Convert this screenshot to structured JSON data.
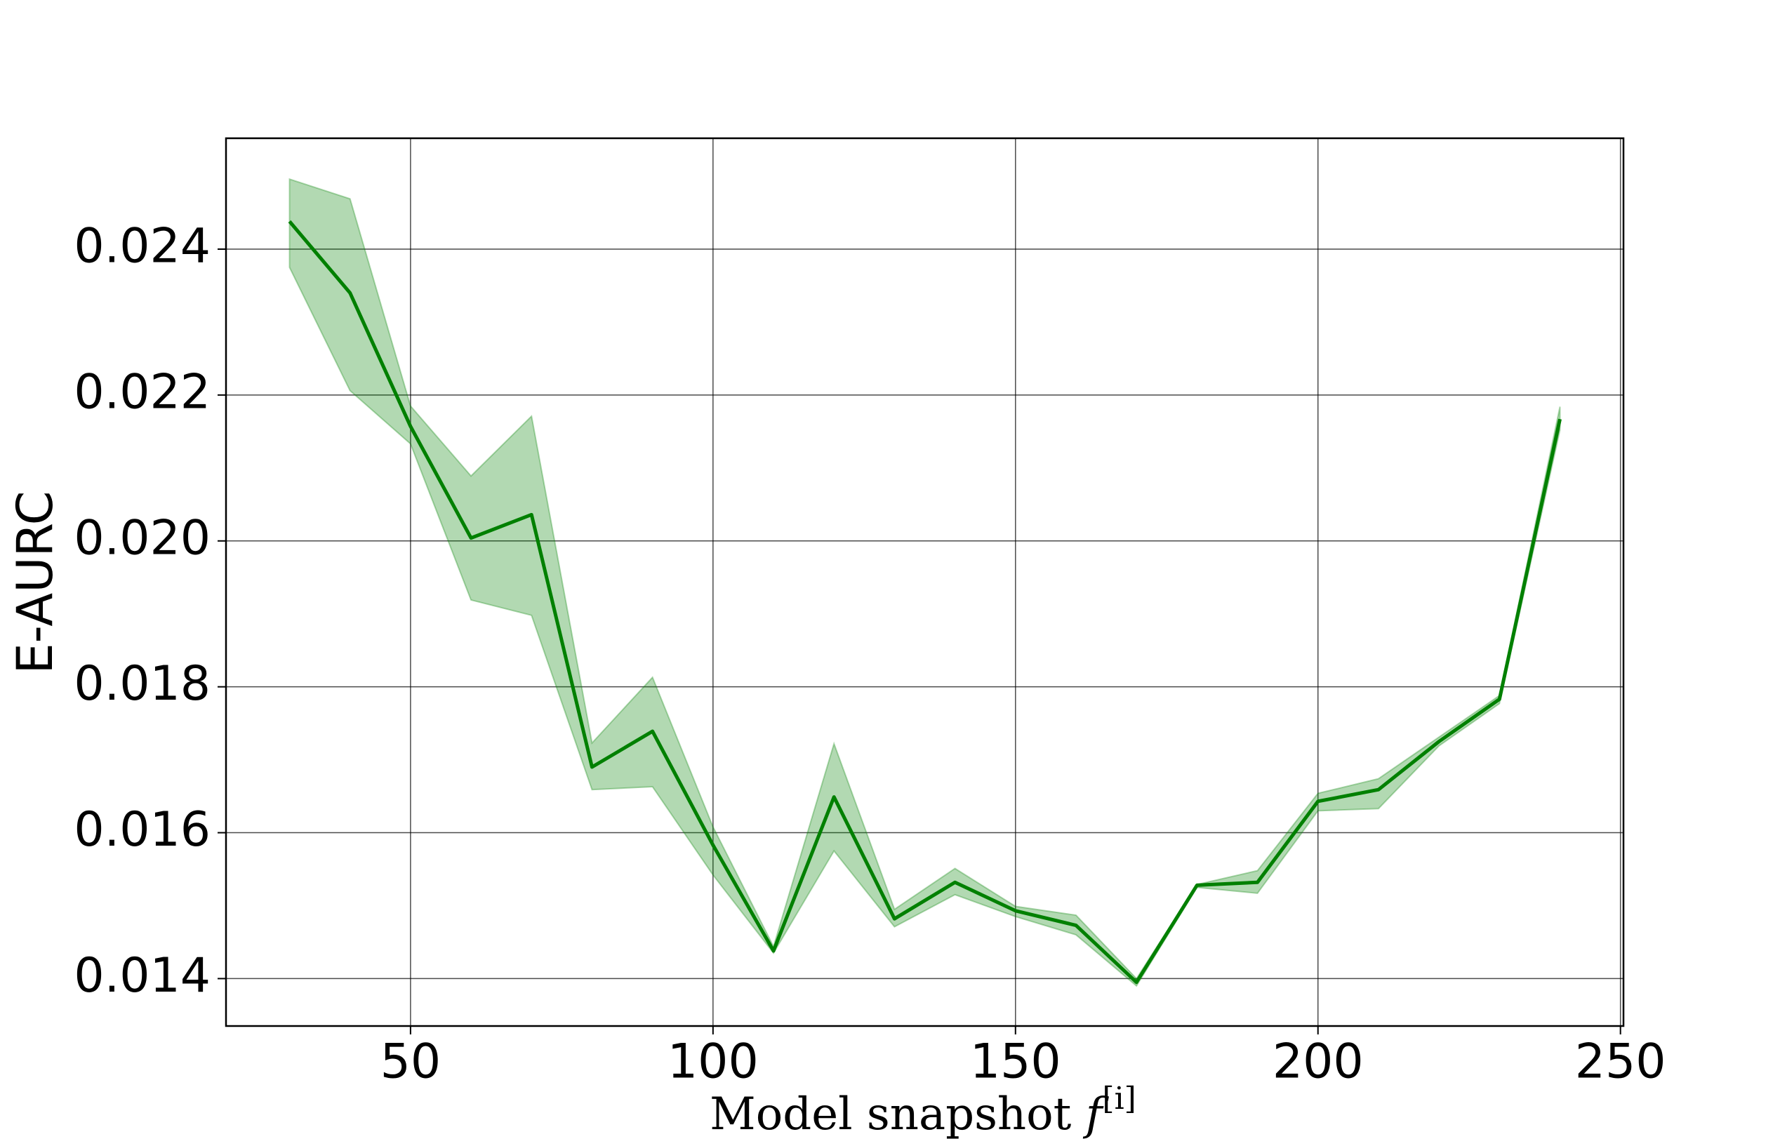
{
  "chart_data": {
    "type": "line",
    "xlabel": {
      "text": "Model snapshot",
      "symbol": "f",
      "superscript": "[i]"
    },
    "ylabel": "E-AURC",
    "x": [
      30,
      40,
      50,
      60,
      70,
      80,
      90,
      100,
      110,
      120,
      130,
      140,
      150,
      160,
      170,
      180,
      190,
      200,
      210,
      220,
      230,
      240
    ],
    "series": [
      {
        "color": "#008000",
        "values": [
          0.02438,
          0.0234,
          0.02157,
          0.02004,
          0.02036,
          0.0169,
          0.01739,
          0.01583,
          0.01438,
          0.01649,
          0.01482,
          0.01532,
          0.01493,
          0.01473,
          0.01395,
          0.01528,
          0.01532,
          0.01643,
          0.01659,
          0.01725,
          0.01783,
          0.02167
        ],
        "lower": [
          0.02375,
          0.02206,
          0.02133,
          0.01919,
          0.01898,
          0.01659,
          0.01663,
          0.01542,
          0.01435,
          0.01575,
          0.01471,
          0.01515,
          0.01485,
          0.0146,
          0.0139,
          0.01525,
          0.01517,
          0.0163,
          0.01633,
          0.01719,
          0.01777,
          0.02152
        ],
        "upper": [
          0.02496,
          0.02469,
          0.02185,
          0.02089,
          0.02171,
          0.01723,
          0.01813,
          0.01608,
          0.01444,
          0.01722,
          0.01495,
          0.01551,
          0.01499,
          0.01487,
          0.014,
          0.01529,
          0.01548,
          0.01654,
          0.01674,
          0.01731,
          0.01788,
          0.02184
        ]
      }
    ],
    "xlim": [
      19.5,
      250.5
    ],
    "xticks": [
      50,
      100,
      150,
      200,
      250
    ],
    "ylim": [
      0.01335,
      0.02552
    ],
    "yticks": [
      {
        "value": 0.014,
        "label": "0.014"
      },
      {
        "value": 0.016,
        "label": "0.016"
      },
      {
        "value": 0.018,
        "label": "0.018"
      },
      {
        "value": 0.02,
        "label": "0.020"
      },
      {
        "value": 0.022,
        "label": "0.022"
      },
      {
        "value": 0.024,
        "label": "0.024"
      }
    ],
    "grid": true
  }
}
